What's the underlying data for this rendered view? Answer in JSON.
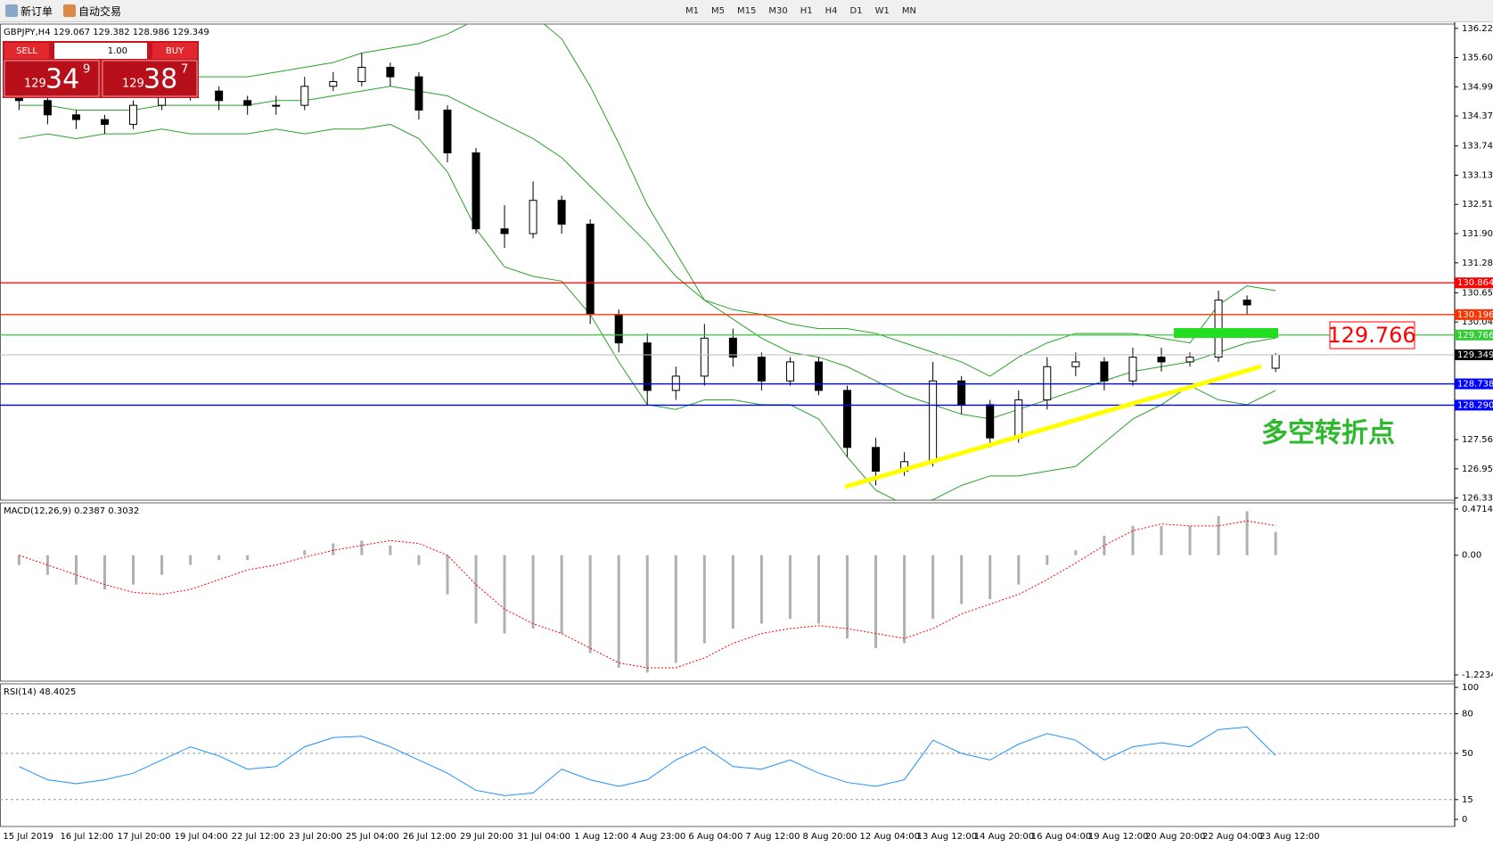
{
  "toolbar": {
    "new_order": "新订单",
    "auto_trade": "自动交易",
    "timeframes": [
      "M1",
      "M5",
      "M15",
      "M30",
      "H1",
      "H4",
      "D1",
      "W1",
      "MN"
    ]
  },
  "trade_panel": {
    "sell": "SELL",
    "lot": "1.00",
    "buy": "BUY",
    "sell_big": "129",
    "sell_mid": "34",
    "sell_small": "9",
    "buy_big": "129",
    "buy_mid": "38",
    "buy_small": "7"
  },
  "chart_data": [
    {
      "type": "candlestick",
      "title": "GBPJPY,H4  129.067 129.382 128.986 129.349",
      "categories": [
        "15 Jul 2019",
        null,
        "16 Jul 12:00",
        null,
        "17 Jul 20:00",
        null,
        "19 Jul 04:00",
        null,
        "22 Jul 12:00",
        null,
        "23 Jul 20:00",
        null,
        "25 Jul 04:00",
        null,
        "26 Jul 12:00",
        null,
        "29 Jul 20:00",
        null,
        "31 Jul 04:00",
        null,
        "1 Aug 12:00",
        null,
        "4 Aug 23:00",
        null,
        "6 Aug 04:00",
        null,
        "7 Aug 12:00",
        null,
        "8 Aug 20:00",
        null,
        "12 Aug 04:00",
        null,
        "13 Aug 12:00",
        null,
        "14 Aug 20:00",
        null,
        "16 Aug 04:00",
        null,
        "19 Aug 12:00",
        null,
        "20 Aug 20:00",
        null,
        "22 Aug 04:00",
        null,
        "23 Aug 12:00"
      ],
      "open": [
        134.9,
        134.7,
        134.4,
        134.3,
        134.2,
        134.6,
        134.8,
        134.9,
        134.7,
        134.6,
        134.6,
        135.0,
        135.1,
        135.4,
        135.2,
        134.5,
        133.6,
        132.0,
        131.9,
        132.6,
        132.1,
        130.2,
        129.6,
        128.6,
        128.9,
        129.7,
        129.3,
        128.8,
        129.2,
        128.6,
        127.4,
        126.9,
        127.1,
        128.8,
        128.3,
        127.6,
        128.4,
        129.1,
        129.2,
        128.8,
        129.3,
        129.2,
        129.3,
        130.5,
        129.067
      ],
      "high": [
        135.0,
        134.8,
        134.5,
        134.4,
        134.7,
        134.9,
        135.1,
        135.0,
        134.8,
        134.8,
        135.2,
        135.3,
        135.7,
        135.5,
        135.3,
        134.6,
        133.7,
        132.5,
        133.0,
        132.7,
        132.2,
        130.3,
        129.8,
        129.1,
        130.0,
        129.9,
        129.4,
        129.3,
        129.3,
        128.7,
        127.6,
        127.3,
        129.2,
        128.9,
        128.4,
        128.6,
        129.3,
        129.4,
        129.3,
        129.5,
        129.5,
        129.4,
        130.7,
        130.6,
        129.382
      ],
      "low": [
        134.5,
        134.2,
        134.1,
        134.0,
        134.1,
        134.5,
        134.7,
        134.5,
        134.4,
        134.4,
        134.5,
        134.9,
        135.0,
        135.0,
        134.3,
        133.4,
        131.9,
        131.6,
        131.8,
        131.9,
        130.0,
        129.4,
        128.3,
        128.4,
        128.7,
        129.1,
        128.6,
        128.7,
        128.5,
        127.2,
        126.6,
        126.8,
        127.0,
        128.1,
        127.4,
        127.5,
        128.2,
        128.9,
        128.6,
        128.7,
        129.0,
        129.1,
        129.2,
        130.2,
        128.986
      ],
      "close": [
        134.7,
        134.4,
        134.3,
        134.2,
        134.6,
        134.8,
        134.9,
        134.7,
        134.6,
        134.6,
        135.0,
        135.1,
        135.4,
        135.2,
        134.5,
        133.6,
        132.0,
        131.9,
        132.6,
        132.1,
        130.2,
        129.6,
        128.6,
        128.9,
        129.7,
        129.3,
        128.8,
        129.2,
        128.6,
        127.4,
        126.9,
        127.1,
        128.8,
        128.3,
        127.6,
        128.4,
        129.1,
        129.2,
        128.8,
        129.3,
        129.2,
        129.3,
        130.5,
        130.4,
        129.349
      ],
      "bands": [
        {
          "color": "#2ca02c",
          "values": [
            135.3,
            135.2,
            135.1,
            135.0,
            135.0,
            135.1,
            135.2,
            135.2,
            135.2,
            135.3,
            135.4,
            135.5,
            135.7,
            135.8,
            135.9,
            136.1,
            136.4,
            136.6,
            136.5,
            136.0,
            135.0,
            133.8,
            132.5,
            131.5,
            130.5,
            130.3,
            130.2,
            130.0,
            129.9,
            129.9,
            129.8,
            129.6,
            129.4,
            129.2,
            128.9,
            129.3,
            129.6,
            129.8,
            129.8,
            129.8,
            129.7,
            129.6,
            130.4,
            130.8,
            130.7
          ]
        },
        {
          "color": "#2ca02c",
          "values": [
            134.6,
            134.6,
            134.5,
            134.5,
            134.5,
            134.6,
            134.6,
            134.6,
            134.6,
            134.7,
            134.7,
            134.8,
            134.9,
            135.0,
            134.9,
            134.8,
            134.5,
            134.2,
            133.9,
            133.5,
            132.9,
            132.3,
            131.7,
            131.0,
            130.5,
            130.1,
            129.7,
            129.4,
            129.3,
            129.1,
            128.8,
            128.5,
            128.3,
            128.1,
            128.0,
            128.2,
            128.4,
            128.6,
            128.8,
            129.0,
            129.1,
            129.2,
            129.4,
            129.6,
            129.7
          ]
        },
        {
          "color": "#2ca02c",
          "values": [
            133.9,
            134.0,
            133.9,
            134.0,
            134.0,
            134.1,
            134.0,
            134.0,
            134.0,
            134.1,
            134.0,
            134.1,
            134.1,
            134.2,
            133.9,
            133.2,
            132.0,
            131.2,
            131.0,
            130.9,
            130.2,
            129.2,
            128.3,
            128.2,
            128.4,
            128.4,
            128.3,
            128.3,
            128.0,
            127.2,
            126.5,
            126.2,
            126.3,
            126.6,
            126.8,
            126.8,
            126.9,
            127.0,
            127.5,
            128.0,
            128.3,
            128.7,
            128.4,
            128.3,
            128.6
          ]
        }
      ],
      "levels": [
        {
          "value": 130.864,
          "color": "#ff0000"
        },
        {
          "value": 130.196,
          "color": "#ff3300"
        },
        {
          "value": 129.766,
          "color": "#33cc33"
        },
        {
          "value": 128.738,
          "color": "#0000ff"
        },
        {
          "value": 128.29,
          "label": "128.290",
          "color": "#0000ff"
        }
      ],
      "current": 129.349,
      "annotation_price": "129.766",
      "annotation": "多空转折点",
      "ylim": [
        126.29,
        136.31
      ],
      "yticks": [
        {
          "value": 136.22,
          "label": "136.220"
        },
        135.605,
        {
          "value": 134.99,
          "label": "134.990"
        },
        134.375,
        133.745,
        {
          "value": 133.13,
          "label": "133.130"
        },
        132.515,
        {
          "value": 131.9,
          "label": "131.900"
        },
        131.285,
        130.655,
        {
          "value": 130.04,
          "label": "130.040"
        },
        127.565,
        {
          "value": 126.95,
          "label": "126.950"
        },
        126.335
      ]
    },
    {
      "type": "macd",
      "title": "MACD(12,26,9) 0.2387 0.3032",
      "histogram": [
        -0.1,
        -0.2,
        -0.3,
        -0.35,
        -0.3,
        -0.2,
        -0.1,
        -0.05,
        -0.05,
        0,
        0.05,
        0.12,
        0.15,
        0.1,
        -0.1,
        -0.4,
        -0.7,
        -0.8,
        -0.75,
        -0.8,
        -1.0,
        -1.15,
        -1.2,
        -1.1,
        -0.9,
        -0.75,
        -0.7,
        -0.65,
        -0.7,
        -0.85,
        -0.95,
        -0.9,
        -0.65,
        -0.5,
        -0.45,
        -0.3,
        -0.1,
        0.05,
        0.2,
        0.3,
        0.3,
        0.3,
        0.4,
        0.45,
        0.2387
      ],
      "signal": [
        0,
        -0.1,
        -0.2,
        -0.3,
        -0.38,
        -0.4,
        -0.35,
        -0.25,
        -0.15,
        -0.1,
        -0.02,
        0.05,
        0.1,
        0.15,
        0.12,
        0.0,
        -0.3,
        -0.55,
        -0.7,
        -0.8,
        -0.95,
        -1.1,
        -1.15,
        -1.15,
        -1.05,
        -0.9,
        -0.8,
        -0.75,
        -0.72,
        -0.75,
        -0.8,
        -0.85,
        -0.75,
        -0.6,
        -0.5,
        -0.4,
        -0.25,
        -0.08,
        0.1,
        0.25,
        0.32,
        0.3,
        0.3,
        0.35,
        0.3032
      ],
      "hist_color": "#b0b0b0",
      "signal_color": "#ff0000",
      "ylim": [
        -1.269,
        0.517
      ],
      "yticks": [
        0.4714,
        {
          "value": 0,
          "label": "0.00"
        },
        -1.2234
      ]
    },
    {
      "type": "rsi",
      "title": "RSI(14) 48.4025",
      "values": [
        40,
        30,
        27,
        30,
        35,
        45,
        55,
        48,
        38,
        40,
        55,
        62,
        63,
        55,
        45,
        35,
        22,
        18,
        20,
        38,
        30,
        25,
        30,
        45,
        55,
        40,
        38,
        45,
        35,
        28,
        25,
        30,
        60,
        50,
        45,
        57,
        65,
        60,
        45,
        55,
        58,
        55,
        68,
        70,
        48.4025
      ],
      "color": "#1e90ff",
      "levels": [
        80,
        50,
        15
      ],
      "ylim": [
        0,
        100
      ],
      "yticks": [
        0,
        15,
        50,
        80,
        100
      ]
    }
  ]
}
